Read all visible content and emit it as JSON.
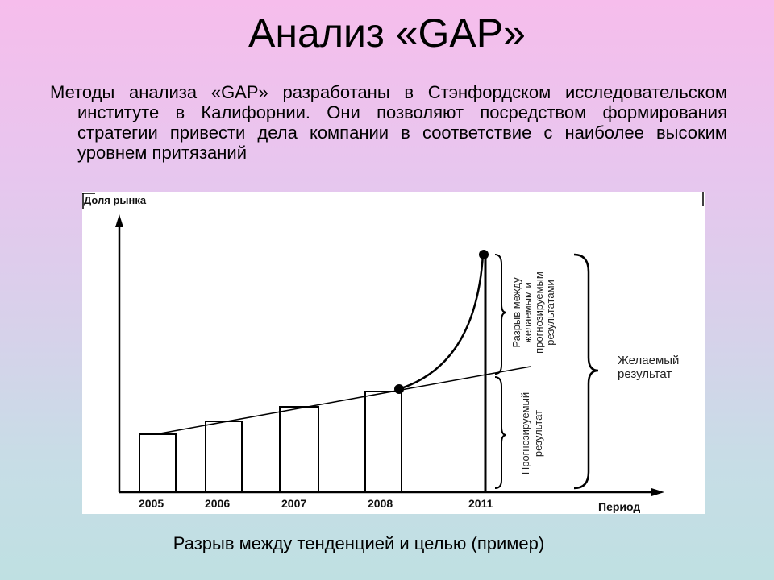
{
  "slide": {
    "title": "Анализ «GAP»",
    "intro": "Методы анализа «GAP» разработаны в Стэнфордском исследовательском институте в Калифорнии. Они позволяют посредством формирования стратегии привести дела компании в соответствие с наиболее высоким уровнем притязаний",
    "caption": "Разрыв между тенденцией и целью (пример)"
  },
  "diagram": {
    "y_axis_label": "Доля рынка",
    "x_axis_label": "Период",
    "years": [
      "2005",
      "2006",
      "2007",
      "2008",
      "2011"
    ],
    "gap_label_line1": "Разрыв между",
    "gap_label_line2": "желаемым и",
    "gap_label_line3": "прогнозируемым",
    "gap_label_line4": "результатами",
    "forecast_label_line1": "Прогнозируемый",
    "forecast_label_line2": "результат",
    "desired_label_line1": "Желаемый",
    "desired_label_line2": "результат"
  }
}
